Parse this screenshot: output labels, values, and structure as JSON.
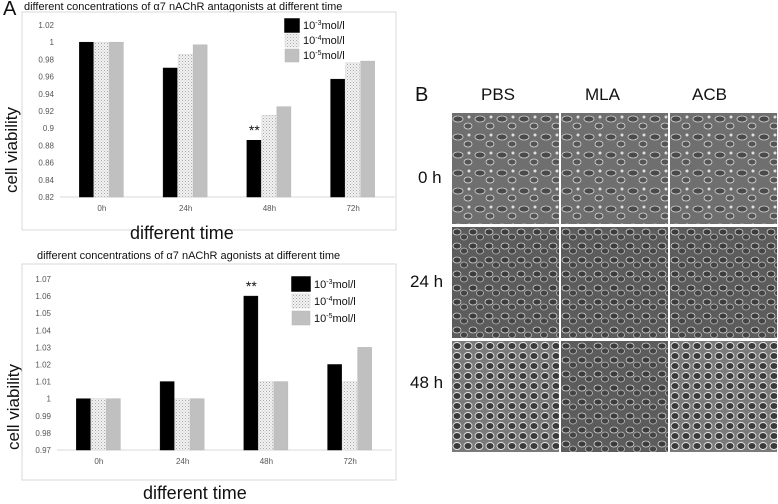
{
  "panels": {
    "a": "A",
    "b": "B"
  },
  "chart_data": [
    {
      "type": "bar",
      "title": "different concentrations of α7 nAChR antagonists at different time",
      "xlabel": "different time",
      "ylabel": "cell viability",
      "categories": [
        "0h",
        "24h",
        "48h",
        "72h"
      ],
      "series": [
        {
          "name": "10-3mol/l",
          "base": "10",
          "exp": "-3",
          "unit": "mol/l",
          "values": [
            1.0,
            0.97,
            0.886,
            0.957
          ]
        },
        {
          "name": "10-4mol/l",
          "base": "10",
          "exp": "-4",
          "unit": "mol/l",
          "values": [
            1.0,
            0.986,
            0.915,
            0.976
          ]
        },
        {
          "name": "10-5mol/l",
          "base": "10",
          "exp": "-5",
          "unit": "mol/l",
          "values": [
            1.0,
            0.997,
            0.925,
            0.978
          ]
        }
      ],
      "ylim": [
        0.82,
        1.02
      ],
      "yticks": [
        "0.82",
        "0.84",
        "0.86",
        "0.88",
        "0.9",
        "0.92",
        "0.94",
        "0.96",
        "0.98",
        "1",
        "1.02"
      ],
      "annotations": [
        {
          "text": "**",
          "category": "48h",
          "series": 0
        }
      ],
      "legend": "top-right",
      "grid": false
    },
    {
      "type": "bar",
      "title": "different concentrations of α7 nAChR agonists at different time",
      "xlabel": "different time",
      "ylabel": "cell viability",
      "categories": [
        "0h",
        "24h",
        "48h",
        "72h"
      ],
      "series": [
        {
          "name": "10-3mol/l",
          "base": "10",
          "exp": "-3",
          "unit": "mol/l",
          "values": [
            1.0,
            1.01,
            1.06,
            1.02
          ]
        },
        {
          "name": "10-4mol/l",
          "base": "10",
          "exp": "-4",
          "unit": "mol/l",
          "values": [
            1.0,
            1.0,
            1.01,
            1.01
          ]
        },
        {
          "name": "10-5mol/l",
          "base": "10",
          "exp": "-5",
          "unit": "mol/l",
          "values": [
            1.0,
            1.0,
            1.01,
            1.03
          ]
        }
      ],
      "ylim": [
        0.97,
        1.07
      ],
      "yticks": [
        "0.97",
        "0.98",
        "0.99",
        "1",
        "1.01",
        "1.02",
        "1.03",
        "1.04",
        "1.05",
        "1.06",
        "1.07"
      ],
      "annotations": [
        {
          "text": "**",
          "category": "48h",
          "series": 0
        }
      ],
      "legend": "top-right",
      "grid": false
    }
  ],
  "micrographs": {
    "columns": [
      "PBS",
      "MLA",
      "ACB"
    ],
    "rows": [
      "0 h",
      "24 h",
      "48 h"
    ]
  }
}
